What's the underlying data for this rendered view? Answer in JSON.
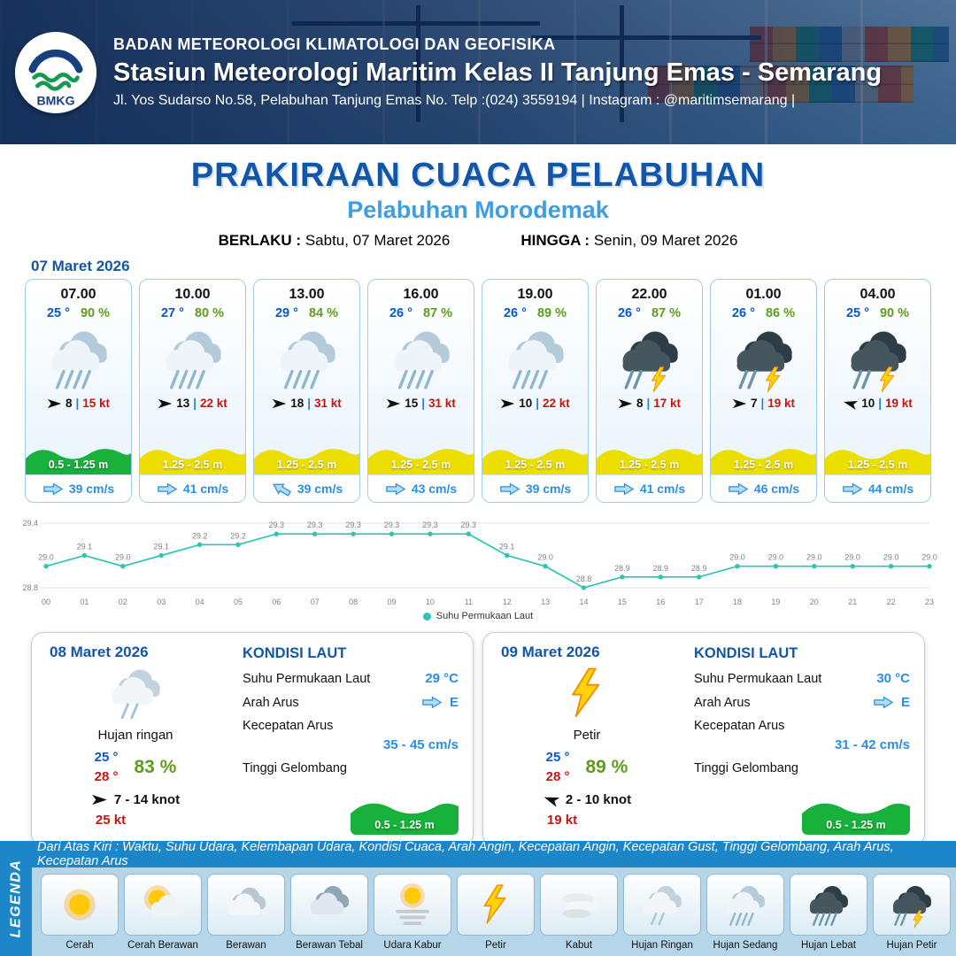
{
  "header": {
    "logo_text": "BMKG",
    "agency": "BADAN METEOROLOGI KLIMATOLOGI DAN GEOFISIKA",
    "station": "Stasiun Meteorologi Maritim Kelas II Tanjung Emas - Semarang",
    "address": "Jl. Yos Sudarso No.58, Pelabuhan Tanjung Emas No. Telp :(024) 3559194 | Instagram : @maritimsemarang |"
  },
  "title": {
    "main": "PRAKIRAAN CUACA PELABUHAN",
    "subtitle": "Pelabuhan Morodemak",
    "berlaku_label": "BERLAKU :",
    "berlaku_value": "Sabtu, 07 Maret 2026",
    "hingga_label": "HINGGA :",
    "hingga_value": "Senin, 09 Maret 2026"
  },
  "forecast_date": "07 Maret 2026",
  "separators": {
    "wind": "|"
  },
  "cards": [
    {
      "time": "07.00",
      "temp": "25 °",
      "humidity": "90 %",
      "icon": "hujan-sedang",
      "wind_speed": "8",
      "wind_gust": "15 kt",
      "wind_rot": 0,
      "wave": "0.5 - 1.25 m",
      "wave_color": "#17b13c",
      "current": "39 cm/s",
      "current_rot": 0
    },
    {
      "time": "10.00",
      "temp": "27 °",
      "humidity": "80 %",
      "icon": "hujan-sedang",
      "wind_speed": "13",
      "wind_gust": "22 kt",
      "wind_rot": 0,
      "wave": "1.25 - 2.5 m",
      "wave_color": "#ecdf00",
      "current": "41 cm/s",
      "current_rot": 0
    },
    {
      "time": "13.00",
      "temp": "29 °",
      "humidity": "84 %",
      "icon": "hujan-sedang",
      "wind_speed": "18",
      "wind_gust": "31 kt",
      "wind_rot": 0,
      "wave": "1.25 - 2.5 m",
      "wave_color": "#ecdf00",
      "current": "39 cm/s",
      "current_rot": 210
    },
    {
      "time": "16.00",
      "temp": "26 °",
      "humidity": "87 %",
      "icon": "hujan-sedang",
      "wind_speed": "15",
      "wind_gust": "31 kt",
      "wind_rot": 0,
      "wave": "1.25 - 2.5 m",
      "wave_color": "#ecdf00",
      "current": "43 cm/s",
      "current_rot": 0
    },
    {
      "time": "19.00",
      "temp": "26 °",
      "humidity": "89 %",
      "icon": "hujan-sedang",
      "wind_speed": "10",
      "wind_gust": "22 kt",
      "wind_rot": 0,
      "wave": "1.25 - 2.5 m",
      "wave_color": "#ecdf00",
      "current": "39 cm/s",
      "current_rot": 0
    },
    {
      "time": "22.00",
      "temp": "26 °",
      "humidity": "87 %",
      "icon": "hujan-petir",
      "wind_speed": "8",
      "wind_gust": "17 kt",
      "wind_rot": 0,
      "wave": "1.25 - 2.5 m",
      "wave_color": "#ecdf00",
      "current": "41 cm/s",
      "current_rot": 0
    },
    {
      "time": "01.00",
      "temp": "26 °",
      "humidity": "86 %",
      "icon": "hujan-petir",
      "wind_speed": "7",
      "wind_gust": "19 kt",
      "wind_rot": 0,
      "wave": "1.25 - 2.5 m",
      "wave_color": "#ecdf00",
      "current": "46 cm/s",
      "current_rot": 0
    },
    {
      "time": "04.00",
      "temp": "25 °",
      "humidity": "90 %",
      "icon": "hujan-petir",
      "wind_speed": "10",
      "wind_gust": "19 kt",
      "wind_rot": 195,
      "wave": "1.25 - 2.5 m",
      "wave_color": "#ecdf00",
      "current": "44 cm/s",
      "current_rot": 0
    }
  ],
  "chart_data": {
    "type": "line",
    "x": [
      "00",
      "01",
      "02",
      "03",
      "04",
      "05",
      "06",
      "07",
      "08",
      "09",
      "10",
      "11",
      "12",
      "13",
      "14",
      "15",
      "16",
      "17",
      "18",
      "19",
      "20",
      "21",
      "22",
      "23"
    ],
    "series": [
      {
        "name": "Suhu Permukaan Laut",
        "values": [
          29.0,
          29.1,
          29.0,
          29.1,
          29.2,
          29.2,
          29.3,
          29.3,
          29.3,
          29.3,
          29.3,
          29.3,
          29.1,
          29.0,
          28.8,
          28.9,
          28.9,
          28.9,
          29.0,
          29.0,
          29.0,
          29.0,
          29.0,
          29.0
        ]
      }
    ],
    "ylim": [
      28.8,
      29.4
    ],
    "line_color": "#2fc4b2",
    "grid": true,
    "legend_position": "bottom"
  },
  "day_cards": [
    {
      "date": "08 Maret 2026",
      "icon": "hujan-ringan",
      "condition": "Hujan ringan",
      "temp_min": "25 °",
      "temp_max": "28 °",
      "humidity": "83 %",
      "wind_range": "7  - 14 knot",
      "wind_gust": "25 kt",
      "wind_rot": 0,
      "sea": {
        "title": "KONDISI LAUT",
        "sst_label": "Suhu Permukaan Laut",
        "sst_value": "29 °C",
        "current_dir_label": "Arah Arus",
        "current_dir_value": "E",
        "current_speed_label": "Kecepatan Arus",
        "current_speed_value": "35 - 45 cm/s",
        "wave_label": "Tinggi Gelombang",
        "wave_value": "0.5 - 1.25 m",
        "wave_color": "#17b13c"
      }
    },
    {
      "date": "09 Maret 2026",
      "icon": "petir",
      "condition": "Petir",
      "temp_min": "25 °",
      "temp_max": "28 °",
      "humidity": "89 %",
      "wind_range": "2  - 10 knot",
      "wind_gust": "19 kt",
      "wind_rot": 200,
      "sea": {
        "title": "KONDISI LAUT",
        "sst_label": "Suhu Permukaan Laut",
        "sst_value": "30 °C",
        "current_dir_label": "Arah Arus",
        "current_dir_value": "E",
        "current_speed_label": "Kecepatan Arus",
        "current_speed_value": "31 - 42 cm/s",
        "wave_label": "Tinggi Gelombang",
        "wave_value": "0.5 - 1.25 m",
        "wave_color": "#17b13c"
      }
    }
  ],
  "legend": {
    "sidebar": "LEGENDA",
    "description": "Dari Atas Kiri : Waktu, Suhu Udara, Kelembapan Udara, Kondisi Cuaca, Arah Angin, Kecepatan Angin, Kecepatan Gust, Tinggi Gelombang, Arah Arus, Kecepatan Arus",
    "items": [
      {
        "label": "Cerah",
        "icon": "cerah"
      },
      {
        "label": "Cerah Berawan",
        "icon": "cerah-berawan"
      },
      {
        "label": "Berawan",
        "icon": "berawan"
      },
      {
        "label": "Berawan Tebal",
        "icon": "berawan-tebal"
      },
      {
        "label": "Udara Kabur",
        "icon": "udara-kabur"
      },
      {
        "label": "Petir",
        "icon": "petir"
      },
      {
        "label": "Kabut",
        "icon": "kabut"
      },
      {
        "label": "Hujan Ringan",
        "icon": "hujan-ringan"
      },
      {
        "label": "Hujan Sedang",
        "icon": "hujan-sedang"
      },
      {
        "label": "Hujan Lebat",
        "icon": "hujan-lebat"
      },
      {
        "label": "Hujan Petir",
        "icon": "hujan-petir"
      }
    ]
  },
  "colors": {
    "title_blue": "#1356a8",
    "subtitle_blue": "#3f9ede",
    "temp_blue": "#0a58c8",
    "humidity_green": "#5f9c1c",
    "gust_red": "#cc1111",
    "wave_green": "#17b13c",
    "wave_yellow": "#ecdf00",
    "current_blue": "#2a8fe0",
    "chart_teal": "#2fc4b2",
    "legend_bar_blue": "#1d86c8"
  }
}
